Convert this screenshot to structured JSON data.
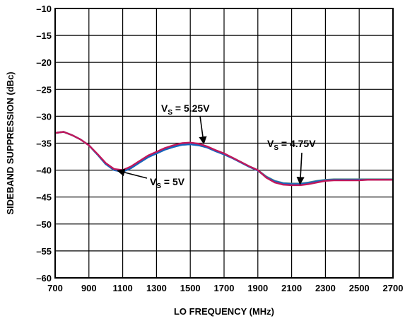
{
  "chart_data": {
    "type": "line",
    "title": "",
    "xlabel": "LO FREQUENCY (MHz)",
    "ylabel": "SIDEBAND SUPPRESSION (dBc)",
    "xlim": [
      700,
      2700
    ],
    "ylim": [
      -60,
      -10
    ],
    "xticks": [
      700,
      900,
      1100,
      1300,
      1500,
      1700,
      1900,
      2100,
      2300,
      2500,
      2700
    ],
    "yticks": [
      -10,
      -15,
      -20,
      -25,
      -30,
      -35,
      -40,
      -45,
      -50,
      -55,
      -60
    ],
    "xtick_labels": [
      "700",
      "900",
      "1100",
      "1300",
      "1500",
      "1700",
      "1900",
      "2100",
      "2300",
      "2500",
      "2700"
    ],
    "ytick_labels": [
      "–10",
      "–15",
      "–20",
      "–25",
      "–30",
      "–35",
      "–40",
      "–45",
      "–50",
      "–55",
      "–60"
    ],
    "grid": true,
    "x": [
      700,
      750,
      800,
      850,
      900,
      950,
      1000,
      1050,
      1100,
      1150,
      1200,
      1250,
      1300,
      1350,
      1400,
      1450,
      1500,
      1550,
      1600,
      1650,
      1700,
      1750,
      1800,
      1850,
      1900,
      1950,
      2000,
      2050,
      2100,
      2150,
      2200,
      2250,
      2300,
      2350,
      2400,
      2450,
      2500,
      2550,
      2600,
      2650,
      2700
    ],
    "series": [
      {
        "name": "VS = 5.25V",
        "color": "#c2185b",
        "values": [
          -33.1,
          -32.9,
          -33.5,
          -34.3,
          -35.4,
          -37.0,
          -38.7,
          -39.8,
          -40.0,
          -39.3,
          -38.3,
          -37.3,
          -36.6,
          -35.9,
          -35.4,
          -35.0,
          -34.9,
          -35.1,
          -35.6,
          -36.3,
          -36.9,
          -37.7,
          -38.5,
          -39.3,
          -40.0,
          -41.4,
          -42.3,
          -42.7,
          -42.8,
          -42.8,
          -42.6,
          -42.3,
          -42.0,
          -41.9,
          -41.9,
          -41.9,
          -41.9,
          -41.8,
          -41.8,
          -41.8,
          -41.8
        ]
      },
      {
        "name": "VS = 5V",
        "color": "#1565c0",
        "values": [
          -33.1,
          -32.9,
          -33.5,
          -34.3,
          -35.4,
          -37.1,
          -38.9,
          -40.0,
          -40.3,
          -39.6,
          -38.6,
          -37.6,
          -36.9,
          -36.2,
          -35.7,
          -35.3,
          -35.2,
          -35.4,
          -35.8,
          -36.5,
          -37.1,
          -37.8,
          -38.6,
          -39.4,
          -40.1,
          -41.3,
          -42.1,
          -42.5,
          -42.6,
          -42.6,
          -42.4,
          -42.1,
          -41.9,
          -41.8,
          -41.8,
          -41.8,
          -41.8,
          -41.8,
          -41.8,
          -41.8,
          -41.8
        ]
      },
      {
        "name": "VS = 4.75V",
        "color": "#4a8a8a",
        "values": [
          -33.1,
          -32.9,
          -33.5,
          -34.3,
          -35.4,
          -37.1,
          -38.9,
          -40.0,
          -40.3,
          -39.6,
          -38.6,
          -37.6,
          -36.9,
          -36.2,
          -35.7,
          -35.3,
          -35.2,
          -35.4,
          -35.8,
          -36.4,
          -37.0,
          -37.7,
          -38.5,
          -39.3,
          -40.0,
          -41.2,
          -42.0,
          -42.4,
          -42.5,
          -42.5,
          -42.3,
          -42.0,
          -41.8,
          -41.7,
          -41.7,
          -41.7,
          -41.7,
          -41.7,
          -41.7,
          -41.7,
          -41.7
        ]
      }
    ],
    "annotations": [
      {
        "main": "V",
        "sub": "S",
        "rest": " = 5.25V",
        "point_x": 1580,
        "point_y": -35.1
      },
      {
        "main": "V",
        "sub": "S",
        "rest": " = 5V",
        "point_x": 1070,
        "point_y": -40.1
      },
      {
        "main": "V",
        "sub": "S",
        "rest": " = 4.75V",
        "point_x": 2150,
        "point_y": -42.6
      }
    ]
  },
  "style": {
    "grid_color": "#000000",
    "frame_color": "#000000"
  }
}
